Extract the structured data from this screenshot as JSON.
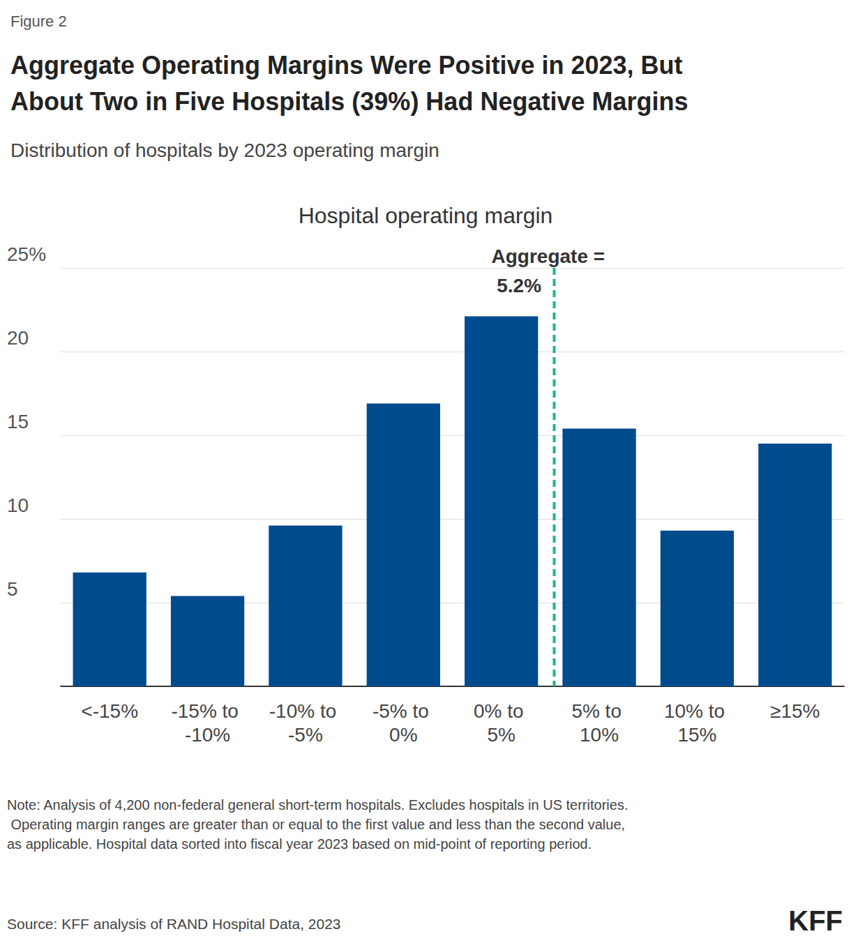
{
  "chart_data": {
    "type": "bar",
    "figure_label": "Figure 2",
    "title": "Aggregate Operating Margins Were Positive in 2023, But About Two in Five Hospitals (39%) Had Negative Margins",
    "subtitle": "Distribution of hospitals by 2023 operating margin",
    "axis_title": "Hospital operating margin",
    "categories": [
      "<-15%",
      "-15% to -10%",
      "-10% to -5%",
      "-5% to 0%",
      "0% to 5%",
      "5% to 10%",
      "10% to 15%",
      "≥15%"
    ],
    "bins": [
      null,
      -15,
      -10,
      -5,
      0,
      5,
      10,
      15,
      null
    ],
    "values": [
      6.8,
      5.4,
      9.6,
      16.9,
      22.1,
      15.4,
      9.3,
      14.5
    ],
    "color": "#004b8d",
    "ylim": [
      0,
      25
    ],
    "yticks": [
      5,
      10,
      15,
      20,
      {
        "value": 25,
        "label": "25%"
      }
    ],
    "grid": true,
    "annotation": {
      "value": 5.2,
      "label": "Aggregate = 5.2%",
      "color": "#20b48c",
      "line_style": "dashed"
    },
    "note": "Note: Analysis of 4,200 non-federal general short-term hospitals. Excludes hospitals in US territories. Operating margin ranges are greater than or equal to the first value and less than the second value, as applicable. Hospital data sorted into fiscal year 2023 based on mid-point of reporting period.",
    "source": "Source: KFF analysis of RAND Hospital Data, 2023",
    "logo": "KFF"
  }
}
